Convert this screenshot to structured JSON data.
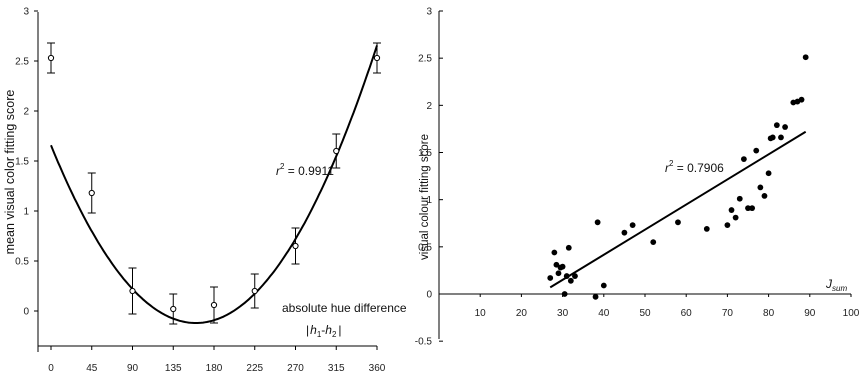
{
  "chart_data": [
    {
      "type": "line",
      "ylabel": "mean visual color fitting score",
      "xlabel": "absolute hue difference",
      "xlabel_formula": {
        "open": "|",
        "h1_base": "h",
        "h1_sub": "1",
        "minus": "-",
        "h2_base": "h",
        "h2_sub": "2",
        "close": "|"
      },
      "xlim": [
        0,
        360
      ],
      "ylim": [
        -0.3,
        3
      ],
      "xticks": [
        0,
        45,
        90,
        135,
        180,
        225,
        270,
        315,
        360
      ],
      "yticks": [
        0,
        0.5,
        1,
        1.5,
        2,
        2.5,
        3
      ],
      "annotation": {
        "base": "r",
        "sup": "2",
        "rest": " = 0.9911"
      },
      "points": [
        {
          "x": 0,
          "y": 2.53,
          "err": 0.15
        },
        {
          "x": 45,
          "y": 1.18,
          "err": 0.2
        },
        {
          "x": 90,
          "y": 0.2,
          "err": 0.23
        },
        {
          "x": 135,
          "y": 0.02,
          "err": 0.15
        },
        {
          "x": 180,
          "y": 0.06,
          "err": 0.18
        },
        {
          "x": 225,
          "y": 0.2,
          "err": 0.17
        },
        {
          "x": 270,
          "y": 0.65,
          "err": 0.18
        },
        {
          "x": 315,
          "y": 1.6,
          "err": 0.17
        },
        {
          "x": 360,
          "y": 2.53,
          "err": 0.15
        }
      ],
      "fit": {
        "kind": "quadratic",
        "vertex_x": 160,
        "vertex_y": -0.12,
        "a": 6.94e-05
      }
    },
    {
      "type": "scatter",
      "ylabel": "visual colour fitting score",
      "xlabel": {
        "base": "J",
        "sub": "sum"
      },
      "xlim": [
        0,
        100
      ],
      "ylim": [
        -0.5,
        3
      ],
      "xticks": [
        10,
        20,
        30,
        40,
        50,
        60,
        70,
        80,
        90,
        100
      ],
      "yticks": [
        -0.5,
        0,
        0.5,
        1,
        1.5,
        2,
        2.5,
        3
      ],
      "annotation": {
        "base": "r",
        "sup": "2",
        "rest": " = 0.7906"
      },
      "regression": {
        "x1": 27,
        "y1": 0.07,
        "x2": 89,
        "y2": 1.72
      },
      "points": [
        [
          27,
          0.17
        ],
        [
          28,
          0.44
        ],
        [
          28.5,
          0.31
        ],
        [
          29,
          0.22
        ],
        [
          29.5,
          0.28
        ],
        [
          30,
          0.29
        ],
        [
          30.5,
          0.0
        ],
        [
          31,
          0.19
        ],
        [
          31.5,
          0.49
        ],
        [
          32,
          0.14
        ],
        [
          33,
          0.19
        ],
        [
          38,
          -0.03
        ],
        [
          38.5,
          0.76
        ],
        [
          40,
          0.09
        ],
        [
          45,
          0.65
        ],
        [
          47,
          0.73
        ],
        [
          52,
          0.55
        ],
        [
          58,
          0.76
        ],
        [
          65,
          0.69
        ],
        [
          70,
          0.73
        ],
        [
          71,
          0.89
        ],
        [
          72,
          0.81
        ],
        [
          73,
          1.01
        ],
        [
          74,
          1.43
        ],
        [
          75,
          0.91
        ],
        [
          76,
          0.91
        ],
        [
          77,
          1.52
        ],
        [
          78,
          1.13
        ],
        [
          79,
          1.04
        ],
        [
          80,
          1.28
        ],
        [
          80.5,
          1.65
        ],
        [
          81,
          1.66
        ],
        [
          82,
          1.79
        ],
        [
          83,
          1.66
        ],
        [
          84,
          1.77
        ],
        [
          86,
          2.03
        ],
        [
          87,
          2.04
        ],
        [
          88,
          2.06
        ],
        [
          89,
          2.51
        ]
      ]
    }
  ]
}
